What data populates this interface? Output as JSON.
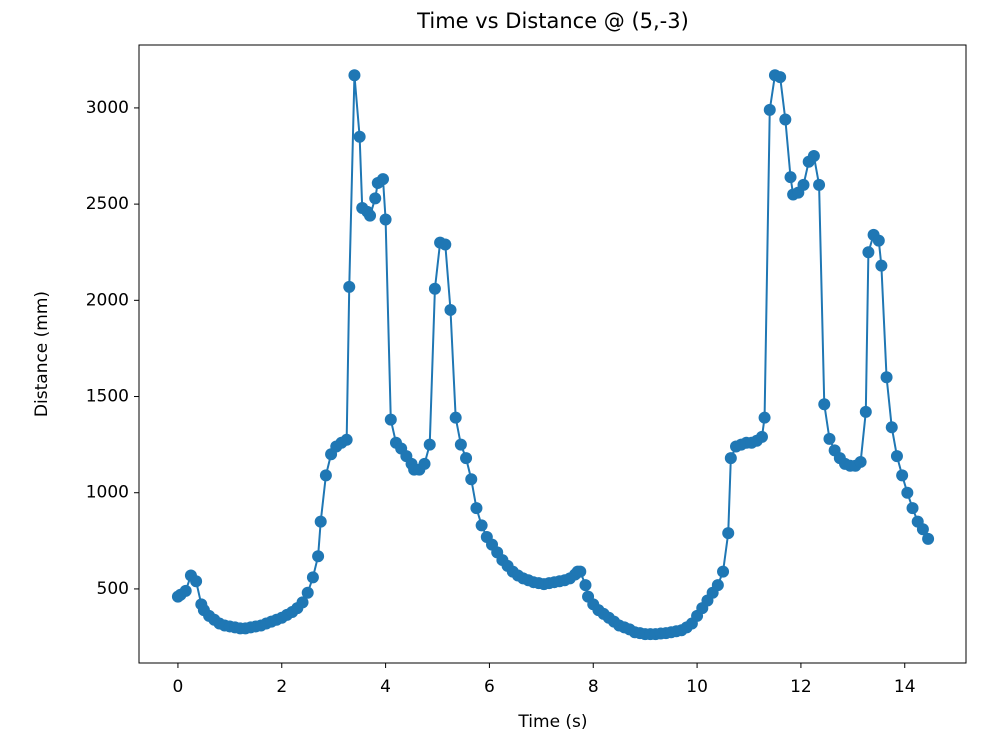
{
  "chart_data": {
    "type": "line",
    "title": "Time vs Distance @ (5,-3)",
    "x_label": "Time (s)",
    "y_label": "Distance (mm)",
    "color": "#1f77b4",
    "marker": true,
    "x": [
      0.0,
      0.05,
      0.15,
      0.25,
      0.35,
      0.45,
      0.5,
      0.6,
      0.7,
      0.8,
      0.9,
      1.0,
      1.1,
      1.2,
      1.3,
      1.4,
      1.5,
      1.6,
      1.7,
      1.8,
      1.9,
      2.0,
      2.1,
      2.2,
      2.3,
      2.4,
      2.5,
      2.6,
      2.7,
      2.75,
      2.85,
      2.95,
      3.05,
      3.15,
      3.25,
      3.3,
      3.4,
      3.5,
      3.55,
      3.65,
      3.7,
      3.8,
      3.85,
      3.95,
      4.0,
      4.1,
      4.2,
      4.3,
      4.4,
      4.5,
      4.55,
      4.65,
      4.75,
      4.85,
      4.95,
      5.05,
      5.15,
      5.25,
      5.35,
      5.45,
      5.55,
      5.65,
      5.75,
      5.85,
      5.95,
      6.05,
      6.15,
      6.25,
      6.35,
      6.45,
      6.55,
      6.65,
      6.75,
      6.85,
      6.95,
      7.05,
      7.15,
      7.25,
      7.35,
      7.45,
      7.55,
      7.65,
      7.7,
      7.75,
      7.85,
      7.9,
      8.0,
      8.1,
      8.2,
      8.3,
      8.4,
      8.5,
      8.6,
      8.7,
      8.8,
      8.9,
      9.0,
      9.1,
      9.2,
      9.3,
      9.4,
      9.5,
      9.6,
      9.7,
      9.8,
      9.9,
      10.0,
      10.1,
      10.2,
      10.3,
      10.4,
      10.5,
      10.6,
      10.65,
      10.75,
      10.85,
      10.95,
      11.05,
      11.15,
      11.25,
      11.3,
      11.4,
      11.5,
      11.6,
      11.7,
      11.8,
      11.85,
      11.95,
      12.05,
      12.15,
      12.25,
      12.35,
      12.45,
      12.55,
      12.65,
      12.75,
      12.85,
      12.95,
      13.05,
      13.15,
      13.25,
      13.3,
      13.4,
      13.5,
      13.55,
      13.65,
      13.75,
      13.85,
      13.95,
      14.05,
      14.15,
      14.25,
      14.35,
      14.45
    ],
    "values": [
      460,
      470,
      490,
      570,
      540,
      420,
      390,
      360,
      340,
      320,
      310,
      305,
      300,
      295,
      295,
      300,
      305,
      310,
      320,
      330,
      340,
      350,
      365,
      380,
      400,
      430,
      480,
      560,
      670,
      850,
      1090,
      1200,
      1240,
      1260,
      1275,
      2070,
      3170,
      2850,
      2480,
      2460,
      2440,
      2530,
      2610,
      2630,
      2420,
      1380,
      1260,
      1230,
      1190,
      1150,
      1120,
      1120,
      1150,
      1250,
      2060,
      2300,
      2290,
      1950,
      1390,
      1250,
      1180,
      1070,
      920,
      830,
      770,
      730,
      690,
      650,
      620,
      590,
      570,
      555,
      545,
      535,
      530,
      525,
      530,
      535,
      540,
      545,
      555,
      575,
      590,
      590,
      520,
      460,
      420,
      390,
      370,
      350,
      330,
      310,
      300,
      290,
      275,
      270,
      265,
      265,
      265,
      268,
      270,
      275,
      280,
      285,
      300,
      320,
      360,
      400,
      440,
      480,
      520,
      590,
      790,
      1180,
      1240,
      1250,
      1260,
      1260,
      1270,
      1290,
      1390,
      2990,
      3170,
      3160,
      2940,
      2640,
      2550,
      2560,
      2600,
      2720,
      2750,
      2600,
      1460,
      1280,
      1220,
      1180,
      1150,
      1140,
      1140,
      1160,
      1420,
      2250,
      2340,
      2310,
      2180,
      1600,
      1340,
      1190,
      1090,
      1000,
      920,
      850,
      810,
      760
    ],
    "xlim": [
      -0.75,
      15.18
    ],
    "ylim": [
      115,
      3327
    ],
    "xticks": [
      0,
      2,
      4,
      6,
      8,
      10,
      12,
      14
    ],
    "yticks": [
      500,
      1000,
      1500,
      2000,
      2500,
      3000
    ]
  }
}
